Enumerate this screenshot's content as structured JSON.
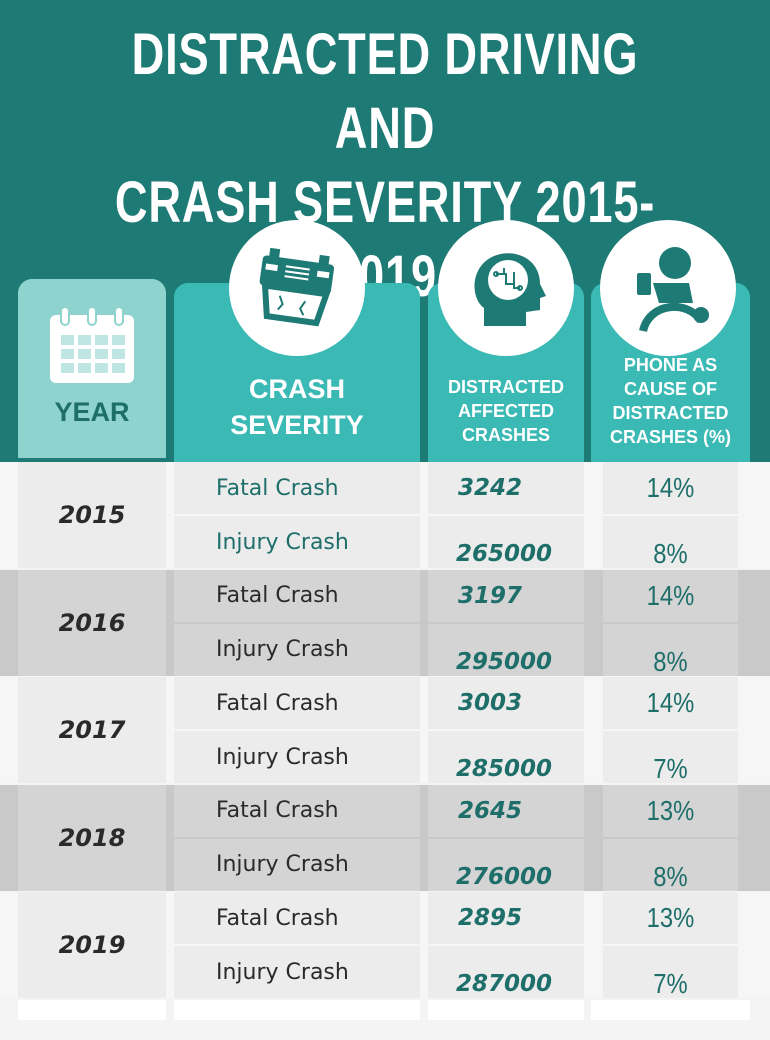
{
  "title_line1": "DISTRACTED DRIVING AND",
  "title_line2": "CRASH SEVERITY  2015-2019",
  "colors": {
    "banner": "#1e7a75",
    "header": "#3bbab5",
    "year_header": "#8fd3cf",
    "accent_text": "#1e6e6a"
  },
  "headers": {
    "year": "YEAR",
    "severity": "CRASH SEVERITY",
    "affected": "DISTRACTED AFFECTED CRASHES",
    "phone": "PHONE AS CAUSE OF DISTRACTED CRASHES (%)"
  },
  "icons": [
    "calendar-icon",
    "overturned-car-icon",
    "brain-circuit-head-icon",
    "driver-phone-icon"
  ],
  "chart_data": {
    "type": "table",
    "columns": [
      "YEAR",
      "CRASH SEVERITY",
      "DISTRACTED AFFECTED CRASHES",
      "PHONE AS CAUSE OF DISTRACTED CRASHES (%)"
    ],
    "rows": [
      {
        "year": "2015",
        "fatal": {
          "label": "Fatal Crash",
          "crashes": "3242",
          "phone": "14%"
        },
        "injury": {
          "label": "Injury Crash",
          "crashes": "265000",
          "phone": "8%"
        }
      },
      {
        "year": "2016",
        "fatal": {
          "label": "Fatal Crash",
          "crashes": "3197",
          "phone": "14%"
        },
        "injury": {
          "label": "Injury Crash",
          "crashes": "295000",
          "phone": "8%"
        }
      },
      {
        "year": "2017",
        "fatal": {
          "label": "Fatal Crash",
          "crashes": "3003",
          "phone": "14%"
        },
        "injury": {
          "label": "Injury Crash",
          "crashes": "285000",
          "phone": "7%"
        }
      },
      {
        "year": "2018",
        "fatal": {
          "label": "Fatal Crash",
          "crashes": "2645",
          "phone": "13%"
        },
        "injury": {
          "label": "Injury Crash",
          "crashes": "276000",
          "phone": "8%"
        }
      },
      {
        "year": "2019",
        "fatal": {
          "label": "Fatal Crash",
          "crashes": "2895",
          "phone": "13%"
        },
        "injury": {
          "label": "Injury Crash",
          "crashes": "287000",
          "phone": "7%"
        }
      }
    ]
  }
}
